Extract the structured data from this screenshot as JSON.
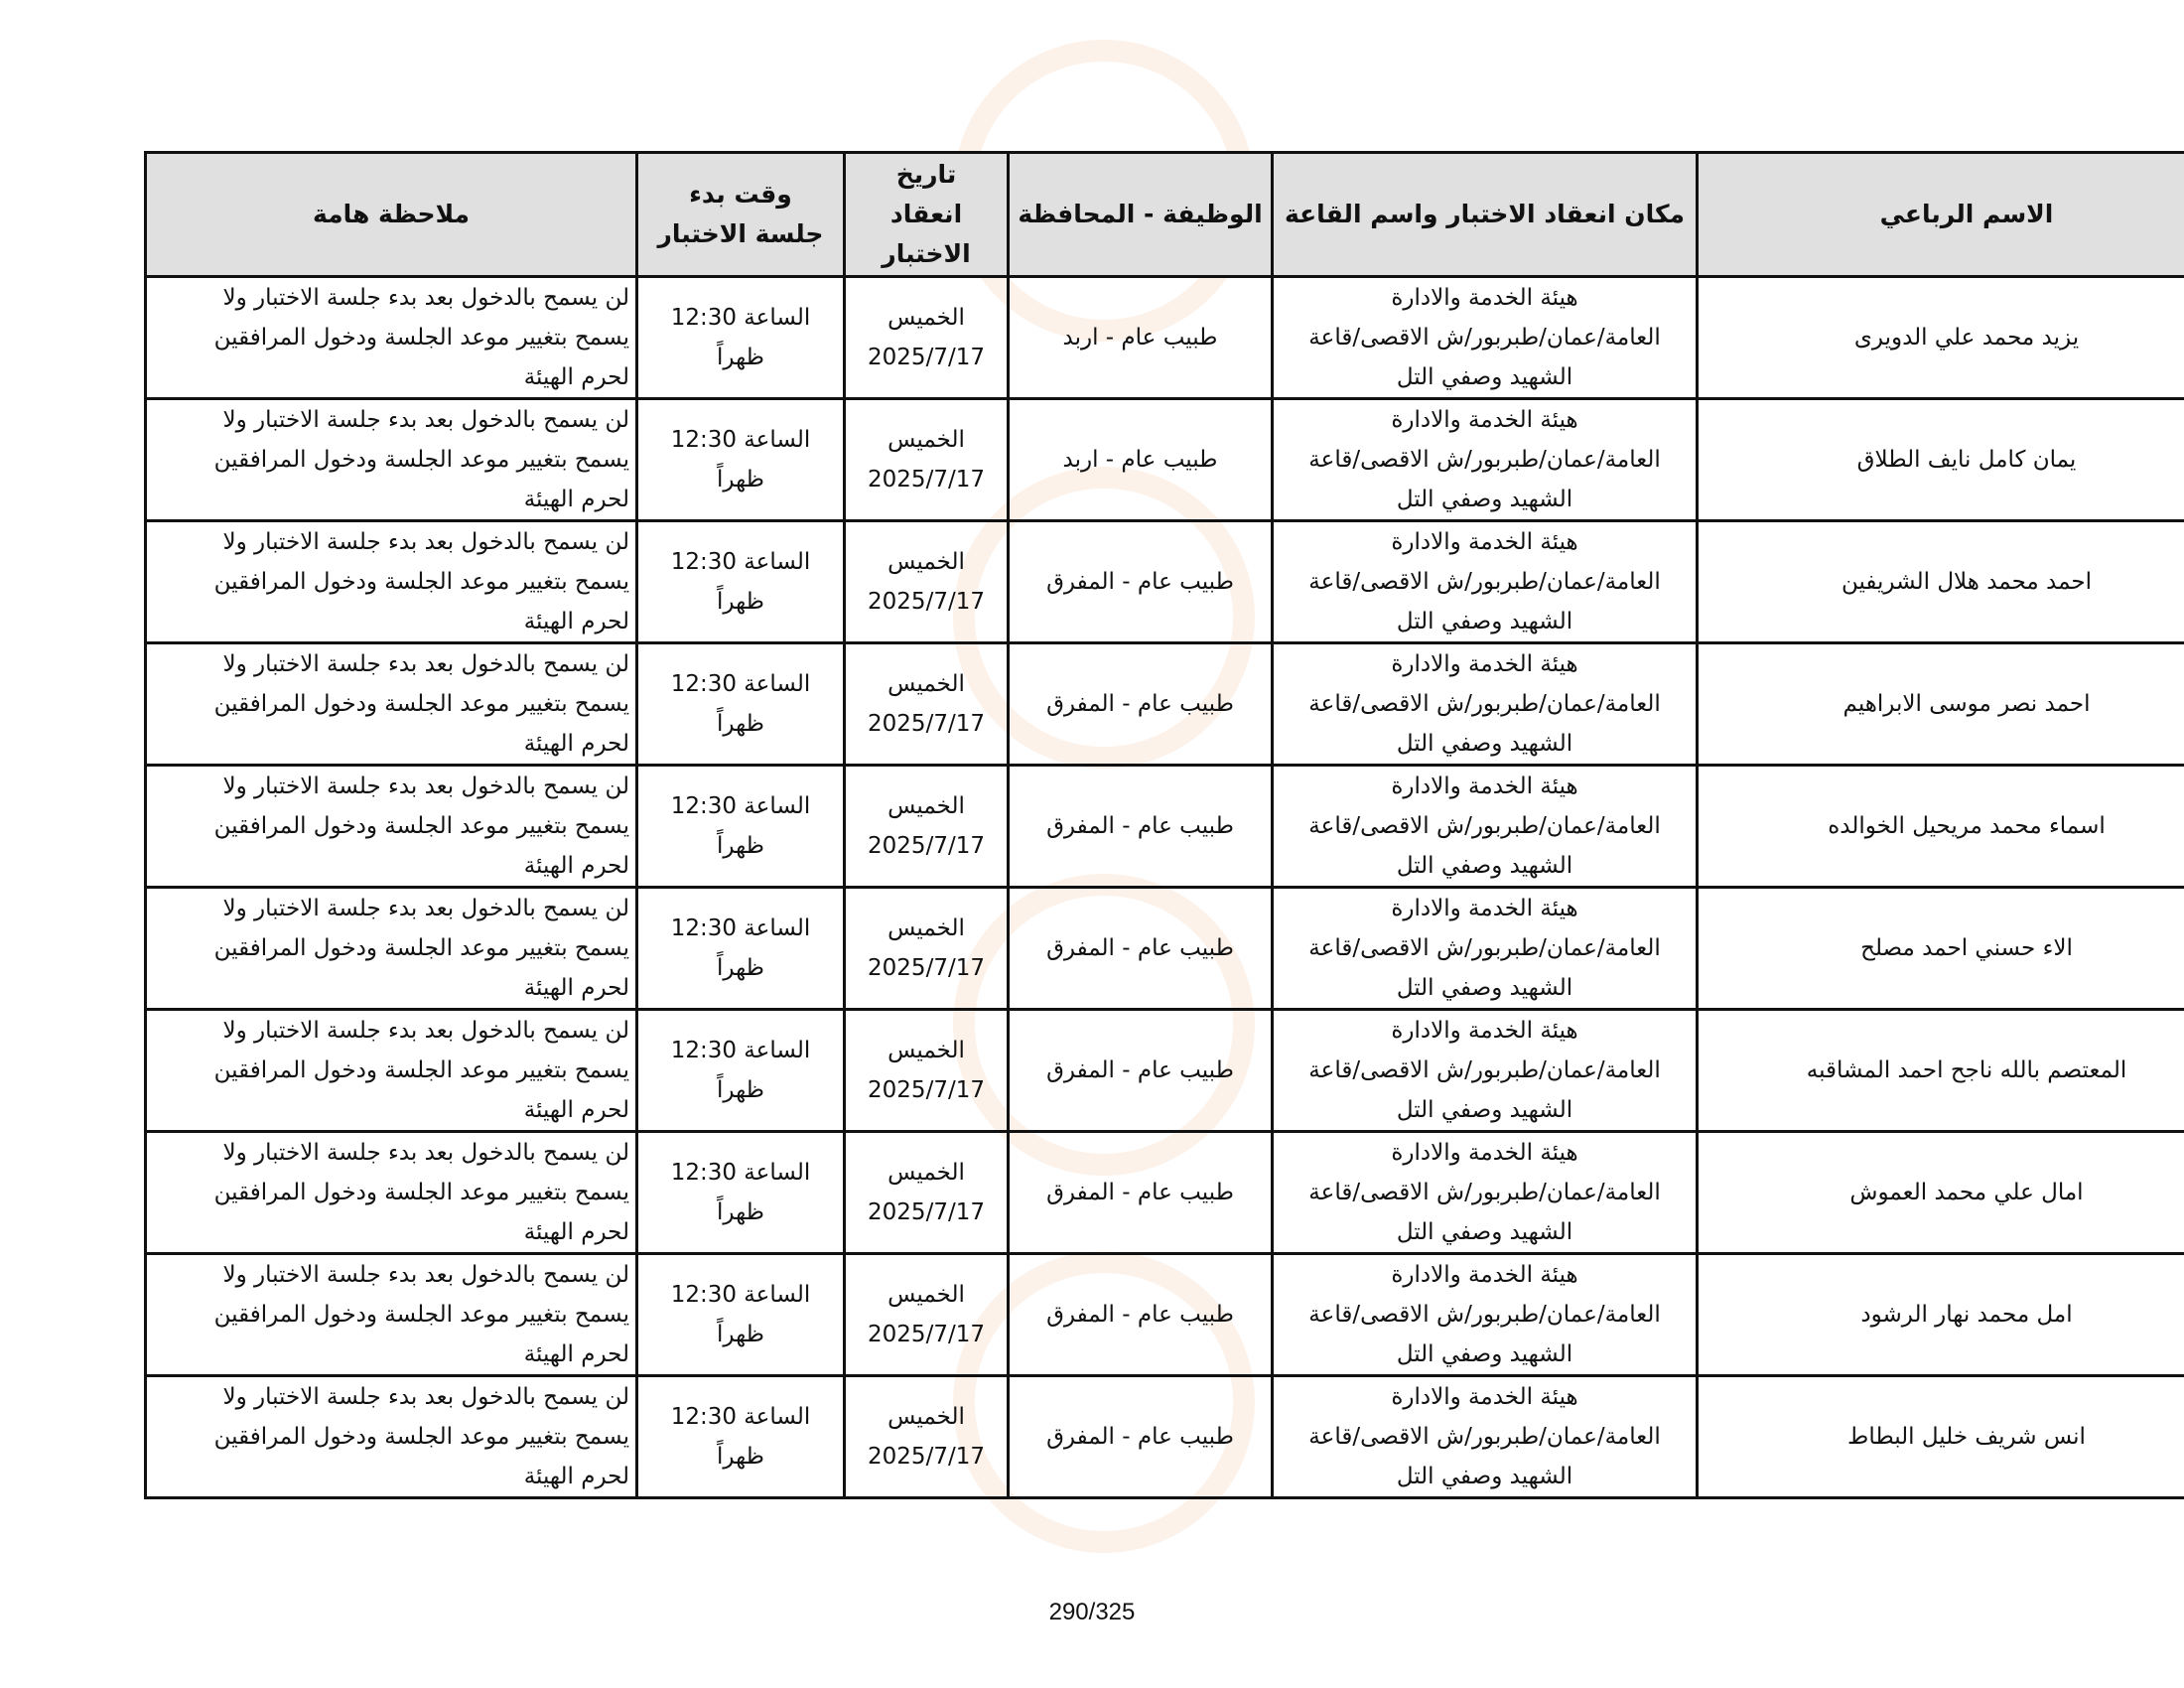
{
  "table": {
    "headers": {
      "name": "الاسم الرباعي",
      "place": "مكان انعقاد الاختبار واسم القاعة",
      "job": "الوظيفة - المحافظة",
      "date": "تاريخ\nانعقاد\nالاختبار",
      "time": "وقت بدء\nجلسة الاختبار",
      "note": "ملاحظة هامة"
    },
    "rows": [
      {
        "name": "يزيد محمد علي الدويرى",
        "place": "هيئة الخدمة والادارة\nالعامة/عمان/طبربور/ش الاقصى/قاعة\nالشهيد وصفي التل",
        "job": "طبيب عام - اربد",
        "date": "الخميس\n2025/7/17",
        "time": "الساعة 12:30\nظهراً",
        "note": "لن يسمح بالدخول بعد بدء جلسة الاختبار ولا\nيسمح بتغيير موعد الجلسة ودخول المرافقين\nلحرم الهيئة"
      },
      {
        "name": "يمان كامل نايف الطلاق",
        "place": "هيئة الخدمة والادارة\nالعامة/عمان/طبربور/ش الاقصى/قاعة\nالشهيد وصفي التل",
        "job": "طبيب عام - اربد",
        "date": "الخميس\n2025/7/17",
        "time": "الساعة 12:30\nظهراً",
        "note": "لن يسمح بالدخول بعد بدء جلسة الاختبار ولا\nيسمح بتغيير موعد الجلسة ودخول المرافقين\nلحرم الهيئة"
      },
      {
        "name": "احمد محمد هلال الشريفين",
        "place": "هيئة الخدمة والادارة\nالعامة/عمان/طبربور/ش الاقصى/قاعة\nالشهيد وصفي التل",
        "job": "طبيب عام - المفرق",
        "date": "الخميس\n2025/7/17",
        "time": "الساعة 12:30\nظهراً",
        "note": "لن يسمح بالدخول بعد بدء جلسة الاختبار ولا\nيسمح بتغيير موعد الجلسة ودخول المرافقين\nلحرم الهيئة"
      },
      {
        "name": "احمد نصر موسى الابراهيم",
        "place": "هيئة الخدمة والادارة\nالعامة/عمان/طبربور/ش الاقصى/قاعة\nالشهيد وصفي التل",
        "job": "طبيب عام - المفرق",
        "date": "الخميس\n2025/7/17",
        "time": "الساعة 12:30\nظهراً",
        "note": "لن يسمح بالدخول بعد بدء جلسة الاختبار ولا\nيسمح بتغيير موعد الجلسة ودخول المرافقين\nلحرم الهيئة"
      },
      {
        "name": "اسماء محمد مريحيل الخوالده",
        "place": "هيئة الخدمة والادارة\nالعامة/عمان/طبربور/ش الاقصى/قاعة\nالشهيد وصفي التل",
        "job": "طبيب عام - المفرق",
        "date": "الخميس\n2025/7/17",
        "time": "الساعة 12:30\nظهراً",
        "note": "لن يسمح بالدخول بعد بدء جلسة الاختبار ولا\nيسمح بتغيير موعد الجلسة ودخول المرافقين\nلحرم الهيئة"
      },
      {
        "name": "الاء حسني احمد مصلح",
        "place": "هيئة الخدمة والادارة\nالعامة/عمان/طبربور/ش الاقصى/قاعة\nالشهيد وصفي التل",
        "job": "طبيب عام - المفرق",
        "date": "الخميس\n2025/7/17",
        "time": "الساعة 12:30\nظهراً",
        "note": "لن يسمح بالدخول بعد بدء جلسة الاختبار ولا\nيسمح بتغيير موعد الجلسة ودخول المرافقين\nلحرم الهيئة"
      },
      {
        "name": "المعتصم بالله ناجح احمد المشاقبه",
        "place": "هيئة الخدمة والادارة\nالعامة/عمان/طبربور/ش الاقصى/قاعة\nالشهيد وصفي التل",
        "job": "طبيب عام - المفرق",
        "date": "الخميس\n2025/7/17",
        "time": "الساعة 12:30\nظهراً",
        "note": "لن يسمح بالدخول بعد بدء جلسة الاختبار ولا\nيسمح بتغيير موعد الجلسة ودخول المرافقين\nلحرم الهيئة"
      },
      {
        "name": "امال علي محمد العموش",
        "place": "هيئة الخدمة والادارة\nالعامة/عمان/طبربور/ش الاقصى/قاعة\nالشهيد وصفي التل",
        "job": "طبيب عام - المفرق",
        "date": "الخميس\n2025/7/17",
        "time": "الساعة 12:30\nظهراً",
        "note": "لن يسمح بالدخول بعد بدء جلسة الاختبار ولا\nيسمح بتغيير موعد الجلسة ودخول المرافقين\nلحرم الهيئة"
      },
      {
        "name": "امل محمد نهار الرشود",
        "place": "هيئة الخدمة والادارة\nالعامة/عمان/طبربور/ش الاقصى/قاعة\nالشهيد وصفي التل",
        "job": "طبيب عام - المفرق",
        "date": "الخميس\n2025/7/17",
        "time": "الساعة 12:30\nظهراً",
        "note": "لن يسمح بالدخول بعد بدء جلسة الاختبار ولا\nيسمح بتغيير موعد الجلسة ودخول المرافقين\nلحرم الهيئة"
      },
      {
        "name": "انس شريف خليل البطاط",
        "place": "هيئة الخدمة والادارة\nالعامة/عمان/طبربور/ش الاقصى/قاعة\nالشهيد وصفي التل",
        "job": "طبيب عام - المفرق",
        "date": "الخميس\n2025/7/17",
        "time": "الساعة 12:30\nظهراً",
        "note": "لن يسمح بالدخول بعد بدء جلسة الاختبار ولا\nيسمح بتغيير موعد الجلسة ودخول المرافقين\nلحرم الهيئة"
      }
    ]
  },
  "footer": {
    "page_number": "290/325"
  },
  "colors": {
    "header_bg": "#e0e0e0",
    "border": "#111111",
    "watermark": "#f09650"
  }
}
